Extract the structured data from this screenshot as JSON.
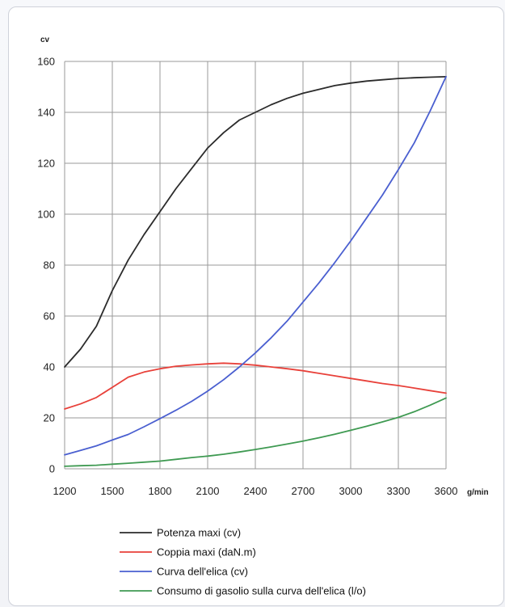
{
  "chart_data": {
    "type": "line",
    "title": "",
    "ylabel": "cv",
    "xlabel": "g/min",
    "xlim": [
      1200,
      3600
    ],
    "ylim": [
      0,
      160
    ],
    "xticks": [
      "1200",
      "1500",
      "1800",
      "2100",
      "2400",
      "2700",
      "3000",
      "3300",
      "3600"
    ],
    "yticks": [
      "0",
      "20",
      "40",
      "60",
      "80",
      "100",
      "120",
      "140",
      "160"
    ],
    "grid": true,
    "legend_position": "bottom",
    "series": [
      {
        "name": "Potenza maxi (cv)",
        "color": "#2b2b2b",
        "x": [
          1200,
          1300,
          1400,
          1500,
          1600,
          1700,
          1800,
          1900,
          2000,
          2100,
          2200,
          2300,
          2400,
          2500,
          2600,
          2700,
          2800,
          2900,
          3000,
          3100,
          3200,
          3300,
          3400,
          3500,
          3600
        ],
        "y": [
          40,
          47,
          56,
          70,
          82,
          92,
          101,
          110,
          118,
          126,
          132,
          137,
          140,
          143,
          145.5,
          147.5,
          149,
          150.5,
          151.5,
          152.3,
          152.8,
          153.3,
          153.6,
          153.8,
          154
        ]
      },
      {
        "name": "Coppia maxi (daN.m)",
        "color": "#e8413a",
        "x": [
          1200,
          1300,
          1400,
          1500,
          1600,
          1700,
          1800,
          1900,
          2000,
          2100,
          2200,
          2300,
          2400,
          2500,
          2600,
          2700,
          2800,
          2900,
          3000,
          3100,
          3200,
          3300,
          3400,
          3500,
          3600
        ],
        "y": [
          23.5,
          25.5,
          28,
          32,
          36,
          38,
          39.3,
          40.3,
          40.8,
          41.2,
          41.5,
          41.2,
          40.7,
          40,
          39.3,
          38.5,
          37.5,
          36.5,
          35.5,
          34.5,
          33.5,
          32.7,
          31.7,
          30.7,
          29.7
        ]
      },
      {
        "name": "Curva dell'elica (cv)",
        "color": "#4a5fd0",
        "x": [
          1200,
          1300,
          1400,
          1500,
          1600,
          1700,
          1800,
          1900,
          2000,
          2100,
          2200,
          2300,
          2400,
          2500,
          2600,
          2700,
          2800,
          2900,
          3000,
          3100,
          3200,
          3300,
          3400,
          3500,
          3600
        ],
        "y": [
          5.5,
          7.2,
          9,
          11.3,
          13.5,
          16.5,
          19.7,
          23,
          26.5,
          30.5,
          35,
          40,
          45.5,
          51.5,
          58,
          65.5,
          73,
          81,
          89.5,
          98.5,
          107.5,
          117.5,
          128,
          140.5,
          154
        ]
      },
      {
        "name": "Consumo di gasolio sulla curva dell'elica (l/o)",
        "color": "#3f9a52",
        "x": [
          1200,
          1300,
          1400,
          1500,
          1600,
          1700,
          1800,
          1900,
          2000,
          2100,
          2200,
          2300,
          2400,
          2500,
          2600,
          2700,
          2800,
          2900,
          3000,
          3100,
          3200,
          3300,
          3400,
          3500,
          3600
        ],
        "y": [
          1,
          1.2,
          1.4,
          1.8,
          2.2,
          2.6,
          3.0,
          3.7,
          4.4,
          5.0,
          5.7,
          6.6,
          7.6,
          8.6,
          9.7,
          10.9,
          12.2,
          13.6,
          15.1,
          16.7,
          18.4,
          20.2,
          22.4,
          25.0,
          27.8
        ]
      }
    ]
  }
}
